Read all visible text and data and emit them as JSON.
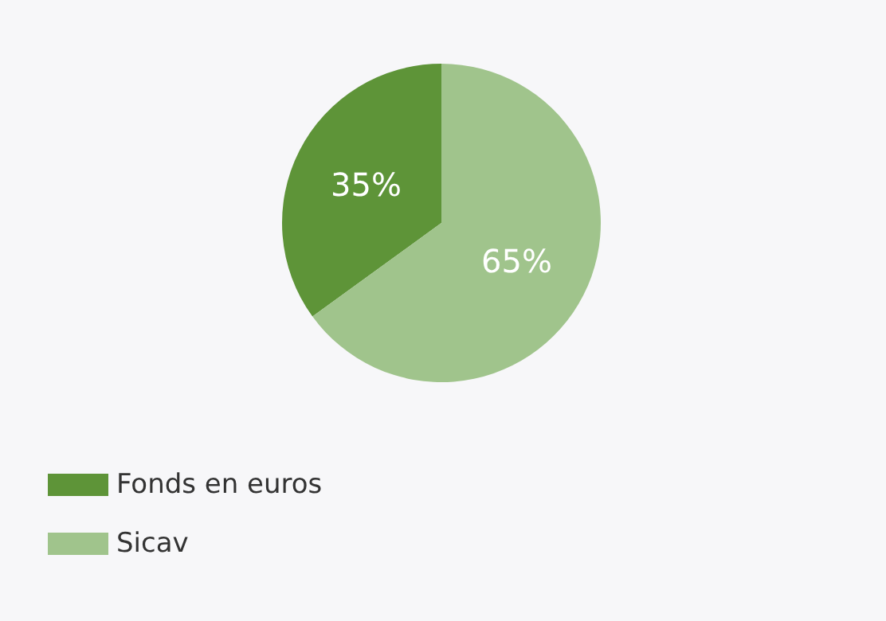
{
  "chart_data": {
    "type": "pie",
    "categories": [
      "Fonds en euros",
      "Sicav"
    ],
    "values": [
      35,
      65
    ],
    "colors": [
      "#5e9438",
      "#a0c48c"
    ],
    "value_labels": [
      "35%",
      "65%"
    ],
    "legend": "bottom left"
  }
}
